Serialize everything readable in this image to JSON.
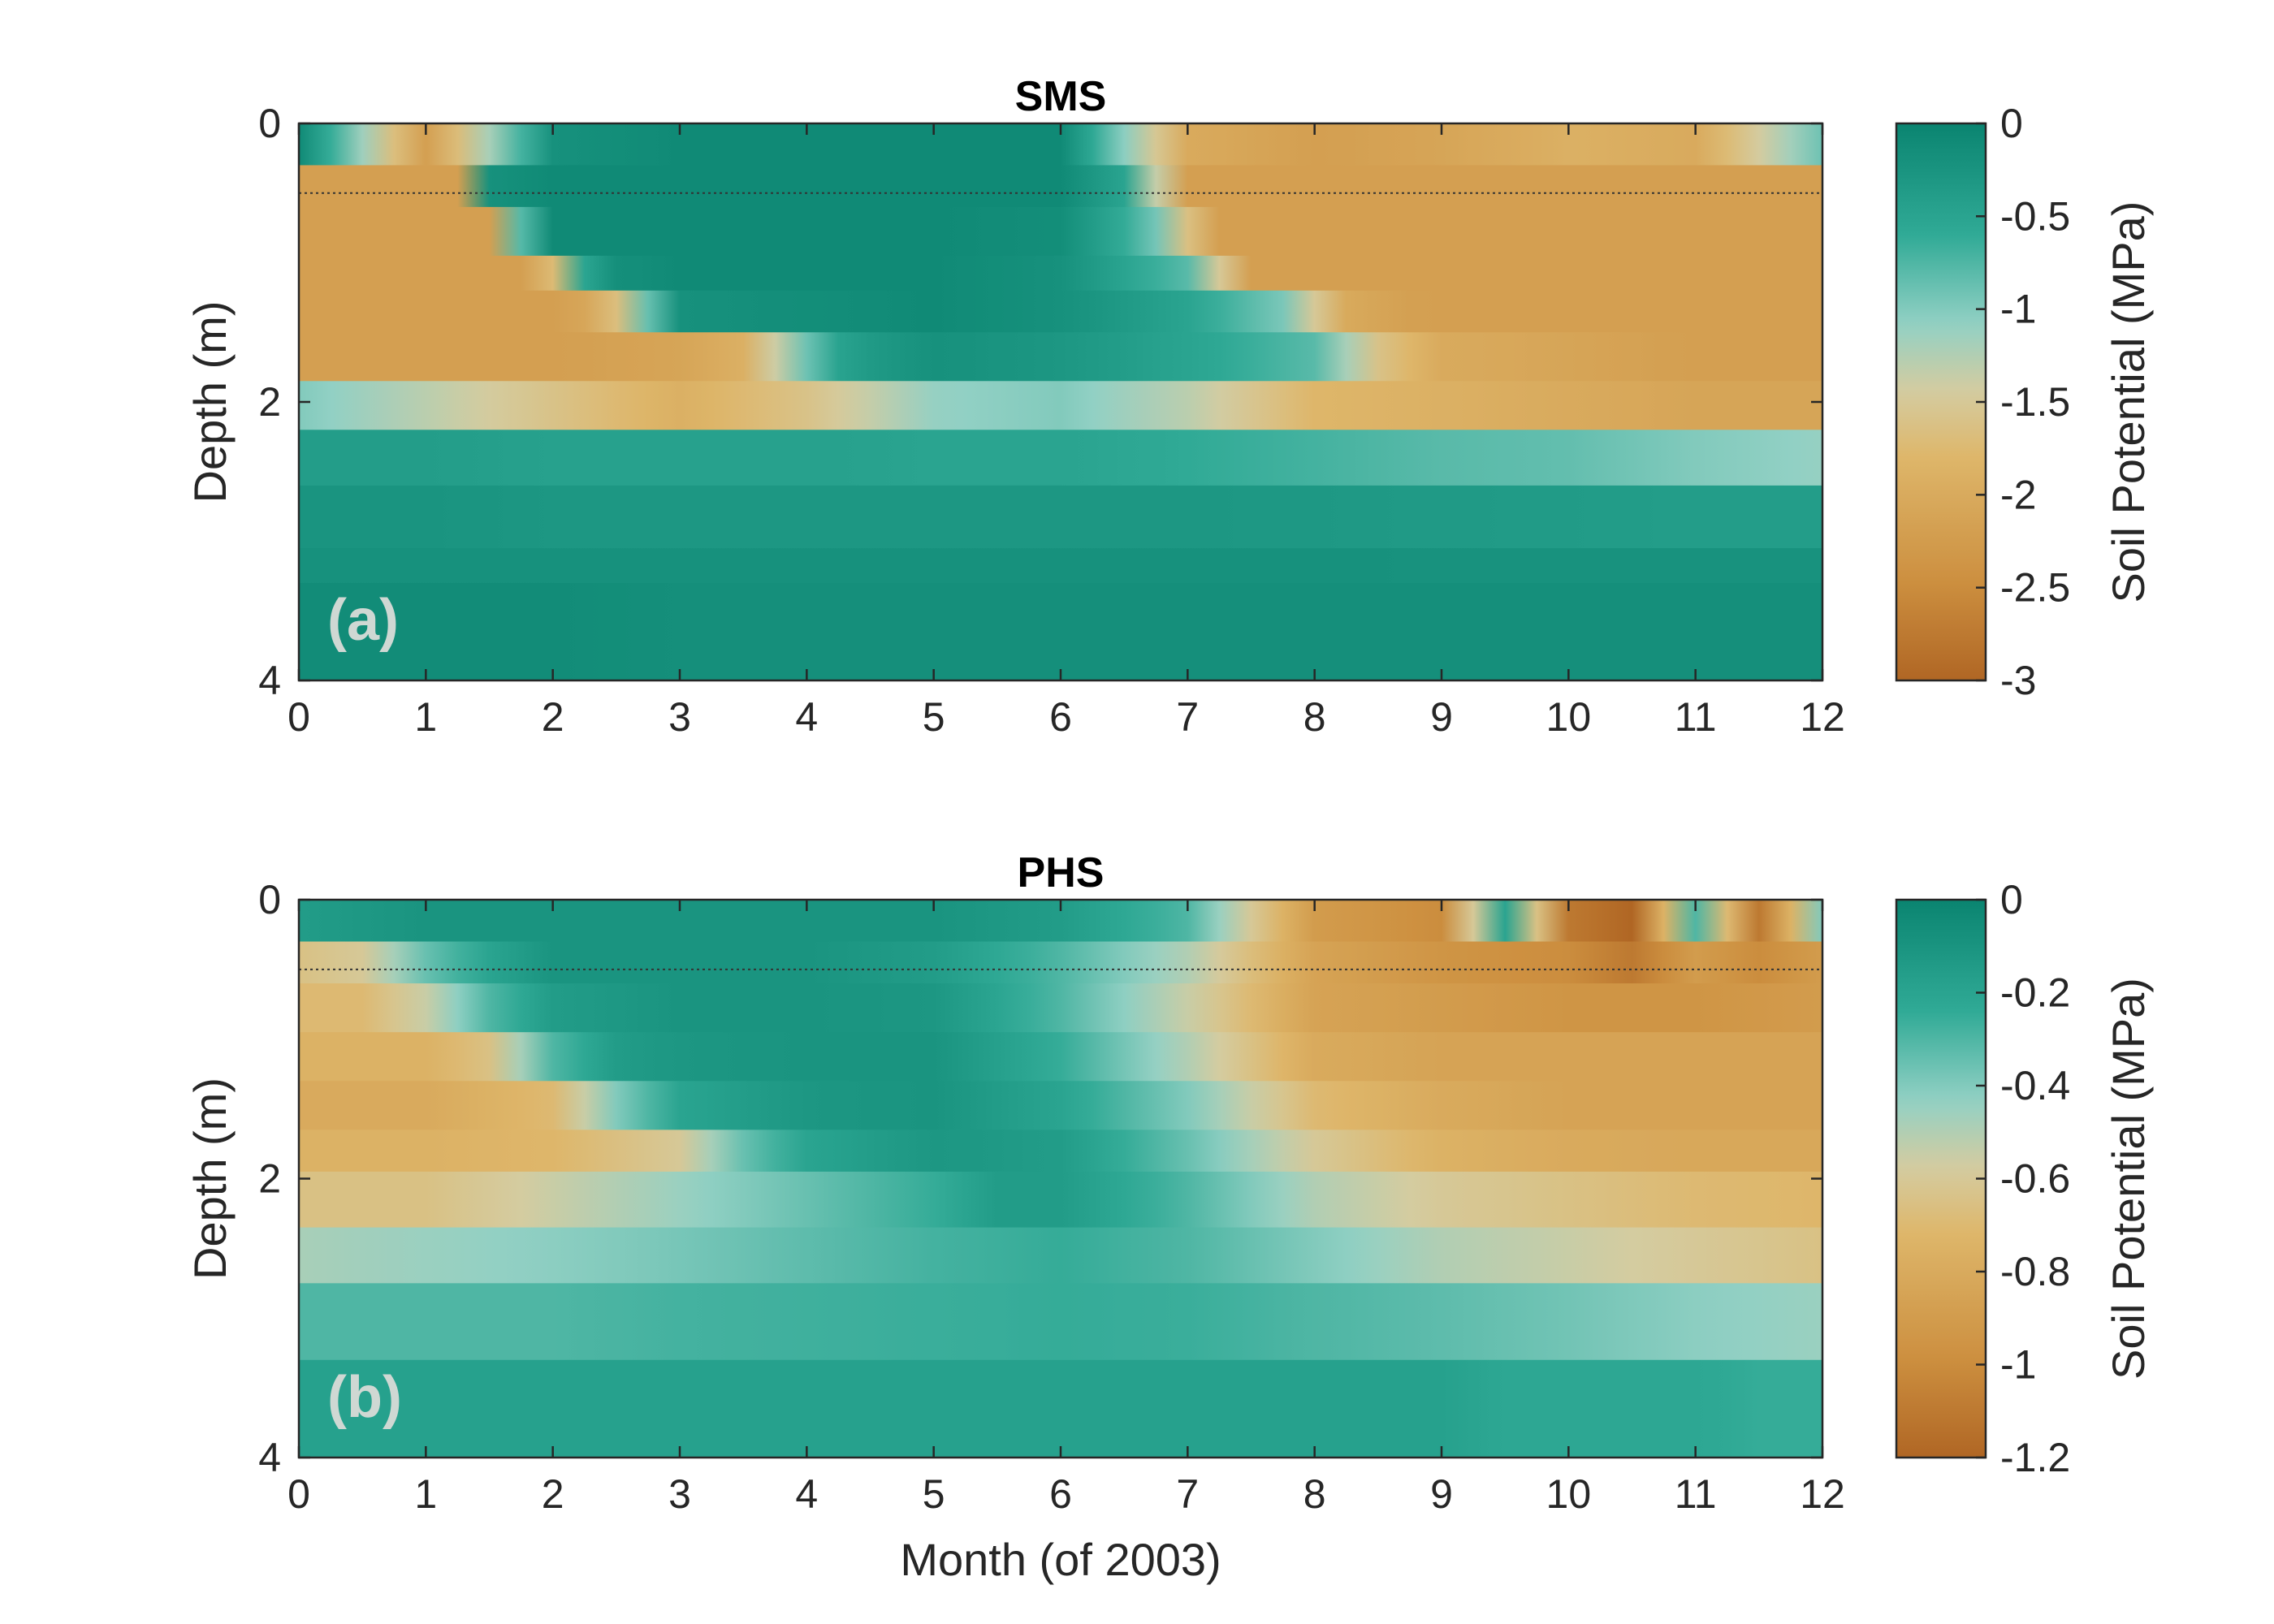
{
  "chart_data": [
    {
      "type": "heatmap",
      "title": "SMS",
      "panel_label": "(a)",
      "xlabel": "",
      "ylabel": "Depth (m)",
      "xlim": [
        0,
        12
      ],
      "ylim": [
        0,
        4
      ],
      "y_reversed": true,
      "x_ticks": [
        0,
        1,
        2,
        3,
        4,
        5,
        6,
        7,
        8,
        9,
        10,
        11,
        12
      ],
      "y_ticks": [
        0,
        2,
        4
      ],
      "reference_line_depth": 0.5,
      "colorbar": {
        "label": "Soil Potential (MPa)",
        "range": [
          -3,
          0
        ],
        "ticks": [
          0,
          -0.5,
          -1,
          -1.5,
          -2,
          -2.5,
          -3
        ]
      },
      "layers": [
        {
          "top": 0.0,
          "bottom": 0.3,
          "months": [
            0,
            1,
            2,
            3,
            4,
            5,
            6,
            7,
            8,
            9,
            10,
            11,
            12
          ],
          "values": [
            -0.1,
            -2.2,
            -0.2,
            -0.1,
            -0.1,
            -0.1,
            -0.1,
            -2.0,
            -2.2,
            -2.1,
            -1.9,
            -2.0,
            -0.9
          ]
        },
        {
          "top": 0.3,
          "bottom": 0.6,
          "months": [
            0,
            1,
            1.3,
            1.5,
            2,
            3,
            4,
            5,
            6,
            6.5,
            7,
            8,
            9,
            10,
            11,
            12
          ],
          "values": [
            -2.2,
            -2.2,
            -2.2,
            -0.2,
            -0.1,
            -0.1,
            -0.1,
            -0.1,
            -0.1,
            -0.5,
            -2.2,
            -2.2,
            -2.2,
            -2.2,
            -2.2,
            -2.2
          ]
        },
        {
          "top": 0.6,
          "bottom": 0.95,
          "months": [
            0,
            1,
            1.5,
            1.8,
            2,
            3,
            4,
            5,
            6,
            6.7,
            7.2,
            8,
            9,
            10,
            11,
            12
          ],
          "values": [
            -2.2,
            -2.2,
            -2.2,
            -0.5,
            -0.1,
            -0.1,
            -0.1,
            -0.1,
            -0.15,
            -0.8,
            -2.2,
            -2.2,
            -2.2,
            -2.2,
            -2.2,
            -2.2
          ]
        },
        {
          "top": 0.95,
          "bottom": 1.2,
          "months": [
            0,
            1,
            1.8,
            2.1,
            2.3,
            3,
            4,
            5,
            6,
            7,
            7.5,
            8,
            9,
            10,
            11,
            12
          ],
          "values": [
            -2.2,
            -2.2,
            -2.2,
            -1.5,
            -0.2,
            -0.1,
            -0.1,
            -0.1,
            -0.2,
            -0.8,
            -2.2,
            -2.2,
            -2.2,
            -2.2,
            -2.2,
            -2.2
          ]
        },
        {
          "top": 1.2,
          "bottom": 1.5,
          "months": [
            0,
            1,
            2,
            2.4,
            2.8,
            3,
            4,
            5,
            6,
            7,
            7.8,
            8.2,
            8.8,
            9,
            10,
            11,
            12
          ],
          "values": [
            -2.2,
            -2.2,
            -2.2,
            -2.0,
            -0.7,
            -0.2,
            -0.15,
            -0.1,
            -0.2,
            -0.5,
            -1.0,
            -2.0,
            -2.2,
            -2.2,
            -2.2,
            -2.2,
            -2.2
          ]
        },
        {
          "top": 1.5,
          "bottom": 1.85,
          "months": [
            0,
            1,
            2,
            3,
            3.5,
            4,
            4.3,
            5,
            6,
            7,
            8,
            8.5,
            9,
            10,
            11,
            12
          ],
          "values": [
            -2.2,
            -2.2,
            -2.2,
            -2.1,
            -1.9,
            -0.9,
            -0.4,
            -0.2,
            -0.3,
            -0.5,
            -0.8,
            -1.6,
            -2.0,
            -2.1,
            -2.2,
            -2.2
          ]
        },
        {
          "top": 1.85,
          "bottom": 2.2,
          "months": [
            0,
            1,
            2,
            3,
            4,
            5,
            6,
            7,
            8,
            9,
            10,
            11,
            12
          ],
          "values": [
            -1.0,
            -1.3,
            -1.6,
            -1.9,
            -1.6,
            -1.1,
            -1.0,
            -1.3,
            -1.8,
            -1.9,
            -2.0,
            -2.1,
            -2.1
          ]
        },
        {
          "top": 2.2,
          "bottom": 2.6,
          "months": [
            0,
            1,
            2,
            3,
            4,
            5,
            6,
            7,
            8,
            9,
            10,
            11,
            12
          ],
          "values": [
            -0.4,
            -0.4,
            -0.45,
            -0.45,
            -0.45,
            -0.5,
            -0.5,
            -0.6,
            -0.7,
            -0.8,
            -0.85,
            -1.0,
            -1.1
          ]
        },
        {
          "top": 2.6,
          "bottom": 3.05,
          "months": [
            0,
            1,
            2,
            3,
            4,
            5,
            6,
            7,
            8,
            9,
            10,
            11,
            12
          ],
          "values": [
            -0.25,
            -0.25,
            -0.3,
            -0.3,
            -0.3,
            -0.3,
            -0.3,
            -0.3,
            -0.32,
            -0.35,
            -0.37,
            -0.4,
            -0.4
          ]
        },
        {
          "top": 3.05,
          "bottom": 3.3,
          "months": [
            0,
            1,
            2,
            3,
            4,
            5,
            6,
            7,
            8,
            9,
            10,
            11,
            12
          ],
          "values": [
            -0.2,
            -0.2,
            -0.2,
            -0.2,
            -0.2,
            -0.2,
            -0.2,
            -0.2,
            -0.2,
            -0.22,
            -0.22,
            -0.22,
            -0.22
          ]
        },
        {
          "top": 3.3,
          "bottom": 4.0,
          "months": [
            0,
            1,
            2,
            2.5,
            3,
            4,
            5,
            6,
            7,
            8,
            9,
            10,
            11,
            12
          ],
          "values": [
            -0.12,
            -0.12,
            -0.12,
            -0.15,
            -0.18,
            -0.18,
            -0.18,
            -0.18,
            -0.18,
            -0.18,
            -0.18,
            -0.18,
            -0.18,
            -0.18
          ]
        }
      ]
    },
    {
      "type": "heatmap",
      "title": "PHS",
      "panel_label": "(b)",
      "xlabel": "Month (of 2003)",
      "ylabel": "Depth (m)",
      "xlim": [
        0,
        12
      ],
      "ylim": [
        0,
        4
      ],
      "y_reversed": true,
      "x_ticks": [
        0,
        1,
        2,
        3,
        4,
        5,
        6,
        7,
        8,
        9,
        10,
        11,
        12
      ],
      "y_ticks": [
        0,
        2,
        4
      ],
      "reference_line_depth": 0.5,
      "colorbar": {
        "label": "Soil Potential (MPa)",
        "range": [
          -1.2,
          0
        ],
        "ticks": [
          0,
          -0.2,
          -0.4,
          -0.6,
          -0.8,
          -1,
          -1.2
        ]
      },
      "layers": [
        {
          "top": 0.0,
          "bottom": 0.3,
          "months": [
            0,
            1,
            2,
            3,
            4,
            5,
            6,
            7,
            8,
            9,
            9.5,
            10,
            10.5,
            11,
            11.5,
            12
          ],
          "values": [
            -0.15,
            -0.1,
            -0.1,
            -0.1,
            -0.1,
            -0.1,
            -0.15,
            -0.3,
            -0.9,
            -1.0,
            -0.2,
            -1.1,
            -1.2,
            -0.3,
            -1.1,
            -0.4
          ]
        },
        {
          "top": 0.3,
          "bottom": 0.6,
          "months": [
            0,
            0.5,
            1,
            1.5,
            2,
            3,
            4,
            5,
            6,
            7,
            8,
            9,
            10,
            10.5,
            11,
            11.5,
            12
          ],
          "values": [
            -0.65,
            -0.6,
            -0.35,
            -0.2,
            -0.1,
            -0.1,
            -0.1,
            -0.15,
            -0.3,
            -0.5,
            -0.85,
            -0.95,
            -1.0,
            -1.1,
            -0.9,
            -1.0,
            -0.9
          ]
        },
        {
          "top": 0.6,
          "bottom": 0.95,
          "months": [
            0,
            0.5,
            1,
            1.5,
            2,
            3,
            4,
            5,
            6,
            7,
            8,
            9,
            10,
            11,
            12
          ],
          "values": [
            -0.7,
            -0.7,
            -0.55,
            -0.3,
            -0.15,
            -0.1,
            -0.1,
            -0.12,
            -0.3,
            -0.55,
            -0.85,
            -0.9,
            -0.95,
            -0.95,
            -0.9
          ]
        },
        {
          "top": 0.95,
          "bottom": 1.3,
          "months": [
            0,
            1,
            1.5,
            2,
            2.5,
            3,
            4,
            5,
            6,
            7,
            8,
            9,
            10,
            11,
            12
          ],
          "values": [
            -0.75,
            -0.75,
            -0.65,
            -0.3,
            -0.15,
            -0.12,
            -0.1,
            -0.1,
            -0.25,
            -0.5,
            -0.8,
            -0.85,
            -0.85,
            -0.85,
            -0.85
          ]
        },
        {
          "top": 1.3,
          "bottom": 1.65,
          "months": [
            0,
            1,
            2,
            2.5,
            3,
            4,
            5,
            6,
            7,
            8,
            9,
            10,
            11,
            12
          ],
          "values": [
            -0.8,
            -0.8,
            -0.7,
            -0.4,
            -0.2,
            -0.12,
            -0.1,
            -0.2,
            -0.4,
            -0.7,
            -0.8,
            -0.85,
            -0.85,
            -0.85
          ]
        },
        {
          "top": 1.65,
          "bottom": 1.95,
          "months": [
            0,
            1,
            2,
            3,
            3.5,
            4,
            5,
            6,
            7,
            8,
            9,
            10,
            11,
            12
          ],
          "values": [
            -0.75,
            -0.75,
            -0.72,
            -0.6,
            -0.35,
            -0.2,
            -0.12,
            -0.15,
            -0.35,
            -0.6,
            -0.75,
            -0.8,
            -0.82,
            -0.82
          ]
        },
        {
          "top": 1.95,
          "bottom": 2.35,
          "months": [
            0,
            1,
            2,
            3,
            4,
            5,
            5.5,
            6,
            7,
            8,
            9,
            10,
            11,
            12
          ],
          "values": [
            -0.65,
            -0.65,
            -0.55,
            -0.45,
            -0.35,
            -0.25,
            -0.15,
            -0.15,
            -0.3,
            -0.5,
            -0.6,
            -0.65,
            -0.7,
            -0.72
          ]
        },
        {
          "top": 2.35,
          "bottom": 2.75,
          "months": [
            0,
            1,
            2,
            3,
            4,
            5,
            6,
            7,
            8,
            9,
            10,
            11,
            12
          ],
          "values": [
            -0.48,
            -0.45,
            -0.42,
            -0.38,
            -0.33,
            -0.28,
            -0.25,
            -0.3,
            -0.4,
            -0.5,
            -0.55,
            -0.6,
            -0.65
          ]
        },
        {
          "top": 2.75,
          "bottom": 3.3,
          "months": [
            0,
            1,
            2,
            3,
            4,
            5,
            6,
            7,
            8,
            9,
            10,
            11,
            12
          ],
          "values": [
            -0.3,
            -0.3,
            -0.3,
            -0.28,
            -0.27,
            -0.26,
            -0.25,
            -0.26,
            -0.3,
            -0.33,
            -0.37,
            -0.42,
            -0.45
          ]
        },
        {
          "top": 3.3,
          "bottom": 4.0,
          "months": [
            0,
            1,
            2,
            3,
            4,
            5,
            6,
            7,
            8,
            9,
            9.5,
            10,
            11,
            11.5,
            12
          ],
          "values": [
            -0.18,
            -0.18,
            -0.18,
            -0.18,
            -0.18,
            -0.18,
            -0.18,
            -0.18,
            -0.18,
            -0.18,
            -0.22,
            -0.22,
            -0.22,
            -0.25,
            -0.25
          ]
        }
      ]
    }
  ]
}
